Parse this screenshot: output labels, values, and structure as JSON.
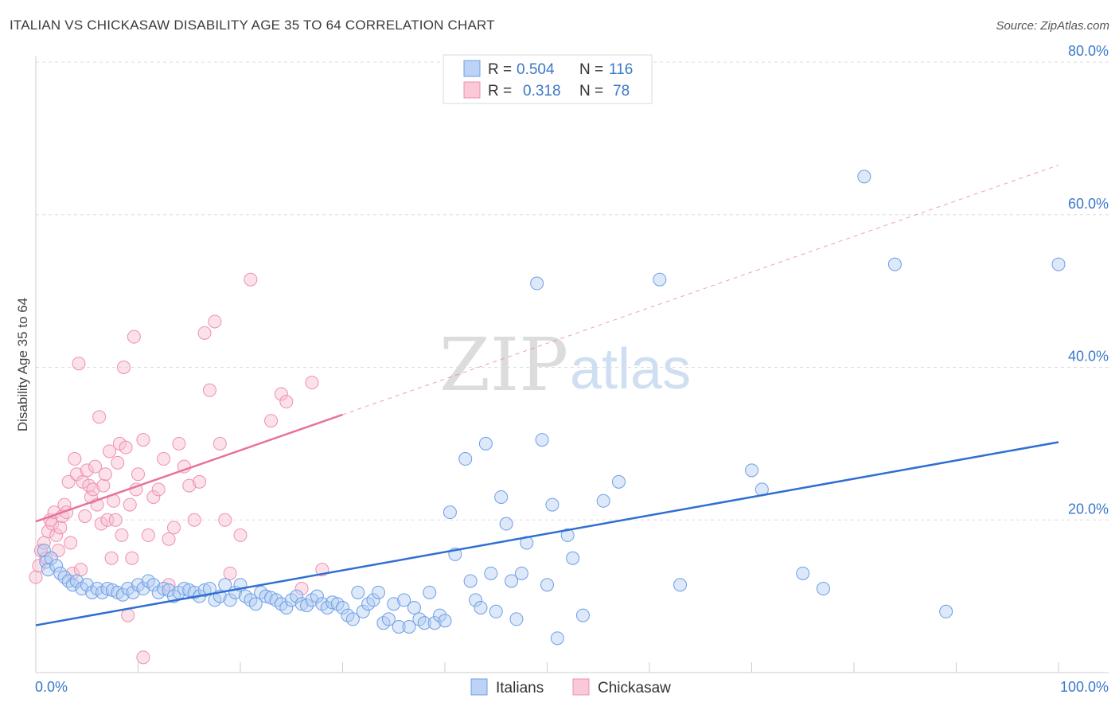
{
  "header": {
    "title": "ITALIAN VS CHICKASAW DISABILITY AGE 35 TO 64 CORRELATION CHART",
    "source": "Source: ZipAtlas.com"
  },
  "watermark": {
    "zip": "ZIP",
    "atlas": "atlas"
  },
  "legend": {
    "rows": [
      {
        "r_label": "R =",
        "r_value": "0.504",
        "n_label": "N =",
        "n_value": "116",
        "color": "#6c9fe6"
      },
      {
        "r_label": "R =",
        "r_value": "0.318",
        "n_label": "N =",
        "n_value": "78",
        "color": "#f08fae"
      }
    ]
  },
  "bottom_legend": [
    {
      "label": "Italians",
      "color": "#6c9fe6"
    },
    {
      "label": "Chickasaw",
      "color": "#f08fae"
    }
  ],
  "chart_data": {
    "type": "scatter",
    "title": "ITALIAN VS CHICKASAW DISABILITY AGE 35 TO 64 CORRELATION CHART",
    "xlabel": "",
    "ylabel": "Disability Age 35 to 64",
    "xlim": [
      0,
      100
    ],
    "ylim": [
      0,
      80
    ],
    "x_tick_labels": [
      "0.0%",
      "100.0%"
    ],
    "y_ticks": [
      20,
      40,
      60,
      80
    ],
    "y_tick_labels": [
      "20.0%",
      "40.0%",
      "60.0%",
      "80.0%"
    ],
    "grid": true,
    "legend_position": "top-center",
    "colors": {
      "Italians": "#6c9fe6",
      "Chickasaw": "#f08fae",
      "italians_line": "#2f6fd1",
      "chickasaw_line": "#e8739a"
    },
    "series": [
      {
        "name": "Italians",
        "points": [
          [
            0.8,
            16
          ],
          [
            1.0,
            14.5
          ],
          [
            1.2,
            13.5
          ],
          [
            1.5,
            15
          ],
          [
            2.0,
            14
          ],
          [
            2.4,
            13
          ],
          [
            2.8,
            12.5
          ],
          [
            3.2,
            12
          ],
          [
            3.6,
            11.5
          ],
          [
            4.0,
            12
          ],
          [
            4.5,
            11
          ],
          [
            5.0,
            11.5
          ],
          [
            5.5,
            10.5
          ],
          [
            6.0,
            11
          ],
          [
            6.5,
            10.5
          ],
          [
            7.0,
            11
          ],
          [
            7.5,
            10.8
          ],
          [
            8.0,
            10.5
          ],
          [
            8.5,
            10.2
          ],
          [
            9.0,
            11
          ],
          [
            9.5,
            10.5
          ],
          [
            10.0,
            11.5
          ],
          [
            10.5,
            11
          ],
          [
            11.0,
            12
          ],
          [
            11.5,
            11.5
          ],
          [
            12.0,
            10.5
          ],
          [
            12.5,
            11
          ],
          [
            13.0,
            10.8
          ],
          [
            13.5,
            10
          ],
          [
            14.0,
            10.5
          ],
          [
            14.5,
            11
          ],
          [
            15.0,
            10.8
          ],
          [
            15.5,
            10.5
          ],
          [
            16.0,
            10
          ],
          [
            16.5,
            10.8
          ],
          [
            17.0,
            11
          ],
          [
            17.5,
            9.5
          ],
          [
            18.0,
            10
          ],
          [
            18.5,
            11.5
          ],
          [
            19.0,
            9.5
          ],
          [
            19.5,
            10.5
          ],
          [
            20.0,
            11.5
          ],
          [
            20.5,
            10
          ],
          [
            21.0,
            9.5
          ],
          [
            21.5,
            9
          ],
          [
            22.0,
            10.5
          ],
          [
            22.5,
            10
          ],
          [
            23.0,
            9.8
          ],
          [
            23.5,
            9.5
          ],
          [
            24.0,
            9
          ],
          [
            24.5,
            8.5
          ],
          [
            25.0,
            9.5
          ],
          [
            25.5,
            10
          ],
          [
            26.0,
            9
          ],
          [
            26.5,
            8.8
          ],
          [
            27.0,
            9.5
          ],
          [
            27.5,
            10
          ],
          [
            28.0,
            9
          ],
          [
            28.5,
            8.5
          ],
          [
            29.0,
            9.2
          ],
          [
            29.5,
            9
          ],
          [
            30.0,
            8.5
          ],
          [
            30.5,
            7.5
          ],
          [
            31.0,
            7
          ],
          [
            31.5,
            10.5
          ],
          [
            32.0,
            8
          ],
          [
            32.5,
            9
          ],
          [
            33.0,
            9.5
          ],
          [
            33.5,
            10.5
          ],
          [
            34.0,
            6.5
          ],
          [
            34.5,
            7
          ],
          [
            35.0,
            9
          ],
          [
            35.5,
            6
          ],
          [
            36.0,
            9.5
          ],
          [
            36.5,
            6
          ],
          [
            37.0,
            8.5
          ],
          [
            37.5,
            7
          ],
          [
            38.0,
            6.5
          ],
          [
            38.5,
            10.5
          ],
          [
            39.0,
            6.5
          ],
          [
            39.5,
            7.5
          ],
          [
            40.0,
            6.8
          ],
          [
            40.5,
            21
          ],
          [
            41.0,
            15.5
          ],
          [
            42.0,
            28
          ],
          [
            42.5,
            12
          ],
          [
            43.0,
            9.5
          ],
          [
            43.5,
            8.5
          ],
          [
            44.0,
            30
          ],
          [
            44.5,
            13
          ],
          [
            45.0,
            8
          ],
          [
            45.5,
            23
          ],
          [
            46.0,
            19.5
          ],
          [
            46.5,
            12
          ],
          [
            47.0,
            7
          ],
          [
            47.5,
            13
          ],
          [
            48.0,
            17
          ],
          [
            49.0,
            51
          ],
          [
            49.5,
            30.5
          ],
          [
            50.0,
            11.5
          ],
          [
            50.5,
            22
          ],
          [
            51.0,
            4.5
          ],
          [
            52.0,
            18
          ],
          [
            52.5,
            15
          ],
          [
            53.5,
            7.5
          ],
          [
            55.5,
            22.5
          ],
          [
            57.0,
            25
          ],
          [
            61.0,
            51.5
          ],
          [
            63.0,
            11.5
          ],
          [
            70.0,
            26.5
          ],
          [
            71.0,
            24
          ],
          [
            75.0,
            13
          ],
          [
            77.0,
            11
          ],
          [
            81.0,
            65
          ],
          [
            84.0,
            53.5
          ],
          [
            89.0,
            8
          ],
          [
            100.0,
            53.5
          ]
        ],
        "trend": {
          "x0": 0,
          "y0": 6.2,
          "x1": 100,
          "y1": 30.2
        }
      },
      {
        "name": "Chickasaw",
        "points": [
          [
            0.0,
            12.5
          ],
          [
            0.3,
            14
          ],
          [
            0.5,
            16
          ],
          [
            0.8,
            17
          ],
          [
            1.0,
            15
          ],
          [
            1.2,
            18.5
          ],
          [
            1.4,
            20
          ],
          [
            1.6,
            19.5
          ],
          [
            1.8,
            21
          ],
          [
            2.0,
            18
          ],
          [
            2.2,
            16
          ],
          [
            2.4,
            19
          ],
          [
            2.6,
            20.5
          ],
          [
            2.8,
            22
          ],
          [
            3.0,
            21
          ],
          [
            3.2,
            25
          ],
          [
            3.4,
            17
          ],
          [
            3.6,
            13
          ],
          [
            3.8,
            28
          ],
          [
            4.0,
            26
          ],
          [
            4.2,
            40.5
          ],
          [
            4.4,
            13.5
          ],
          [
            4.6,
            25
          ],
          [
            4.8,
            20.5
          ],
          [
            5.0,
            26.5
          ],
          [
            5.2,
            24.5
          ],
          [
            5.4,
            23
          ],
          [
            5.6,
            24
          ],
          [
            5.8,
            27
          ],
          [
            6.0,
            22
          ],
          [
            6.2,
            33.5
          ],
          [
            6.4,
            19.5
          ],
          [
            6.6,
            24.5
          ],
          [
            6.8,
            26
          ],
          [
            7.0,
            20
          ],
          [
            7.2,
            29
          ],
          [
            7.4,
            15
          ],
          [
            7.6,
            22.5
          ],
          [
            7.8,
            20
          ],
          [
            8.0,
            27.5
          ],
          [
            8.2,
            30
          ],
          [
            8.4,
            18
          ],
          [
            8.6,
            40
          ],
          [
            8.8,
            29.5
          ],
          [
            9.0,
            7.5
          ],
          [
            9.2,
            22
          ],
          [
            9.4,
            15
          ],
          [
            9.6,
            44
          ],
          [
            9.8,
            24
          ],
          [
            10.0,
            26
          ],
          [
            10.5,
            30.5
          ],
          [
            11.0,
            18
          ],
          [
            11.5,
            23
          ],
          [
            12.0,
            24
          ],
          [
            12.5,
            28
          ],
          [
            13.0,
            17.5
          ],
          [
            13.5,
            19
          ],
          [
            14.0,
            30
          ],
          [
            14.5,
            27
          ],
          [
            15.0,
            24.5
          ],
          [
            15.5,
            20
          ],
          [
            16.0,
            25
          ],
          [
            16.5,
            44.5
          ],
          [
            17.0,
            37
          ],
          [
            17.5,
            46
          ],
          [
            18.0,
            30
          ],
          [
            18.5,
            20
          ],
          [
            19.0,
            13
          ],
          [
            20.0,
            18
          ],
          [
            21.0,
            51.5
          ],
          [
            23.0,
            33
          ],
          [
            24.0,
            36.5
          ],
          [
            24.5,
            35.5
          ],
          [
            26.0,
            11
          ],
          [
            27.0,
            38
          ],
          [
            28.0,
            13.5
          ],
          [
            10.5,
            2
          ],
          [
            13.0,
            11.5
          ]
        ],
        "trend": {
          "x0": 0,
          "y0": 19.8,
          "x1": 30,
          "y1": 33.8,
          "ext_x1": 100,
          "ext_y1": 66.5
        }
      }
    ]
  }
}
